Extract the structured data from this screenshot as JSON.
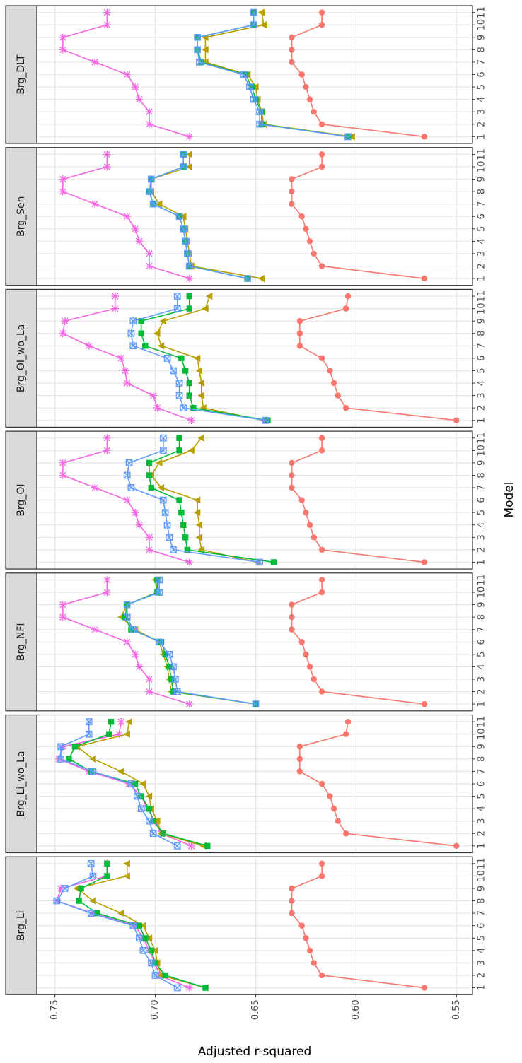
{
  "chart_data": {
    "type": "line",
    "xlabel": "Model",
    "ylabel": "Adjusted r-squared",
    "x": [
      1,
      2,
      3,
      4,
      5,
      6,
      7,
      8,
      9,
      10,
      11
    ],
    "xlim": [
      0.45,
      11.55
    ],
    "xticks": [
      1,
      2,
      3,
      4,
      5,
      6,
      7,
      8,
      9,
      10,
      11
    ],
    "ylim": [
      0.759,
      0.542
    ],
    "yticks": [
      {
        "value": 0.75,
        "label": "0.75"
      },
      {
        "value": 0.7,
        "label": "0.70"
      },
      {
        "value": 0.65,
        "label": "0.65"
      },
      {
        "value": 0.6,
        "label": "0.60"
      },
      {
        "value": 0.55,
        "label": "0.55"
      }
    ],
    "grid": true,
    "facets": [
      {
        "title": "Brg_DLT",
        "series": [
          {
            "color": "#F8766D",
            "marker": "circle",
            "values": [
              0.566,
              0.617,
              0.621,
              0.623,
              0.625,
              0.627,
              0.632,
              0.632,
              0.632,
              0.617,
              0.617
            ]
          },
          {
            "color": "#F564E3",
            "marker": "asterisk",
            "values": [
              0.683,
              0.703,
              0.703,
              0.708,
              0.71,
              0.714,
              0.73,
              0.746,
              0.746,
              0.724,
              0.724
            ]
          },
          {
            "color": "#B79F00",
            "marker": "triangle",
            "values": [
              0.602,
              0.646,
              0.647,
              0.649,
              0.65,
              0.654,
              0.675,
              0.675,
              0.675,
              0.646,
              0.647
            ]
          },
          {
            "color": "#00BA38",
            "marker": "square",
            "values": [
              0.604,
              0.647,
              0.647,
              0.65,
              0.652,
              0.655,
              0.677,
              0.679,
              0.679,
              0.651,
              0.651
            ]
          },
          {
            "color": "#619CFF",
            "marker": "squarecross",
            "values": [
              0.604,
              0.648,
              0.648,
              0.651,
              0.653,
              0.656,
              0.678,
              0.679,
              0.679,
              0.651,
              0.651
            ]
          }
        ]
      },
      {
        "title": "Brg_Sen",
        "series": [
          {
            "color": "#F8766D",
            "marker": "circle",
            "values": [
              0.566,
              0.617,
              0.621,
              0.623,
              0.625,
              0.627,
              0.632,
              0.632,
              0.632,
              0.617,
              0.617
            ]
          },
          {
            "color": "#F564E3",
            "marker": "asterisk",
            "values": [
              0.683,
              0.703,
              0.703,
              0.708,
              0.71,
              0.714,
              0.73,
              0.746,
              0.746,
              0.724,
              0.724
            ]
          },
          {
            "color": "#B79F00",
            "marker": "triangle",
            "values": [
              0.647,
              0.682,
              0.683,
              0.684,
              0.685,
              0.686,
              0.698,
              0.702,
              0.702,
              0.683,
              0.683
            ]
          },
          {
            "color": "#00BA38",
            "marker": "square",
            "values": [
              0.654,
              0.683,
              0.684,
              0.685,
              0.686,
              0.688,
              0.701,
              0.703,
              0.702,
              0.686,
              0.686
            ]
          },
          {
            "color": "#619CFF",
            "marker": "squarecross",
            "values": [
              0.654,
              0.683,
              0.684,
              0.685,
              0.686,
              0.688,
              0.701,
              0.703,
              0.702,
              0.686,
              0.686
            ]
          }
        ]
      },
      {
        "title": "Brg_OI_wo_La",
        "series": [
          {
            "color": "#F8766D",
            "marker": "circle",
            "values": [
              0.55,
              0.605,
              0.609,
              0.611,
              0.613,
              0.617,
              0.628,
              0.628,
              0.628,
              0.605,
              0.604
            ]
          },
          {
            "color": "#F564E3",
            "marker": "asterisk",
            "values": [
              0.682,
              0.699,
              0.701,
              0.714,
              0.715,
              0.717,
              0.733,
              0.746,
              0.745,
              0.72,
              0.72
            ]
          },
          {
            "color": "#B79F00",
            "marker": "triangle",
            "values": [
              0.646,
              0.676,
              0.677,
              0.677,
              0.678,
              0.679,
              0.697,
              0.699,
              0.696,
              0.675,
              0.673
            ]
          },
          {
            "color": "#00BA38",
            "marker": "square",
            "values": [
              0.644,
              0.681,
              0.683,
              0.683,
              0.685,
              0.687,
              0.705,
              0.707,
              0.707,
              0.683,
              0.683
            ]
          },
          {
            "color": "#619CFF",
            "marker": "squarecross",
            "values": [
              0.645,
              0.686,
              0.688,
              0.688,
              0.691,
              0.694,
              0.711,
              0.712,
              0.711,
              0.689,
              0.689
            ]
          }
        ]
      },
      {
        "title": "Brg_OI",
        "series": [
          {
            "color": "#F8766D",
            "marker": "circle",
            "values": [
              0.566,
              0.617,
              0.621,
              0.623,
              0.625,
              0.627,
              0.632,
              0.632,
              0.632,
              0.617,
              0.617
            ]
          },
          {
            "color": "#F564E3",
            "marker": "asterisk",
            "values": [
              0.683,
              0.703,
              0.703,
              0.708,
              0.71,
              0.714,
              0.73,
              0.746,
              0.746,
              0.724,
              0.724
            ]
          },
          {
            "color": "#B79F00",
            "marker": "triangle",
            "values": [
              0.649,
              0.677,
              0.678,
              0.678,
              0.679,
              0.679,
              0.697,
              0.702,
              0.698,
              0.682,
              0.677
            ]
          },
          {
            "color": "#00BA38",
            "marker": "square",
            "values": [
              0.641,
              0.684,
              0.685,
              0.686,
              0.687,
              0.688,
              0.702,
              0.703,
              0.703,
              0.688,
              0.688
            ]
          },
          {
            "color": "#619CFF",
            "marker": "squarecross",
            "values": [
              0.648,
              0.691,
              0.693,
              0.694,
              0.695,
              0.696,
              0.712,
              0.714,
              0.713,
              0.696,
              0.696
            ]
          }
        ]
      },
      {
        "title": "Brg_NFI",
        "series": [
          {
            "color": "#F8766D",
            "marker": "circle",
            "values": [
              0.566,
              0.617,
              0.621,
              0.623,
              0.625,
              0.627,
              0.632,
              0.632,
              0.632,
              0.617,
              0.617
            ]
          },
          {
            "color": "#F564E3",
            "marker": "asterisk",
            "values": [
              0.683,
              0.703,
              0.703,
              0.708,
              0.71,
              0.714,
              0.73,
              0.746,
              0.746,
              0.724,
              0.724
            ]
          },
          {
            "color": "#B79F00",
            "marker": "triangle",
            "values": [
              0.65,
              0.692,
              0.693,
              0.694,
              0.696,
              0.698,
              0.71,
              0.717,
              0.714,
              0.699,
              0.7
            ]
          },
          {
            "color": "#00BA38",
            "marker": "square",
            "values": [
              0.65,
              0.691,
              0.692,
              0.693,
              0.695,
              0.697,
              0.712,
              0.715,
              0.714,
              0.699,
              0.699
            ]
          },
          {
            "color": "#619CFF",
            "marker": "squarecross",
            "values": [
              0.65,
              0.689,
              0.69,
              0.691,
              0.693,
              0.698,
              0.711,
              0.714,
              0.714,
              0.698,
              0.698
            ]
          }
        ]
      },
      {
        "title": "Brg_Li_wo_La",
        "series": [
          {
            "color": "#F8766D",
            "marker": "circle",
            "values": [
              0.55,
              0.605,
              0.609,
              0.611,
              0.613,
              0.617,
              0.628,
              0.628,
              0.628,
              0.605,
              0.604
            ]
          },
          {
            "color": "#F564E3",
            "marker": "asterisk",
            "values": [
              0.682,
              0.697,
              0.7,
              0.704,
              0.707,
              0.713,
              0.733,
              0.748,
              0.746,
              0.718,
              0.717
            ]
          },
          {
            "color": "#B79F00",
            "marker": "triangle",
            "values": [
              0.676,
              0.697,
              0.699,
              0.702,
              0.703,
              0.706,
              0.717,
              0.731,
              0.739,
              0.714,
              0.713
            ]
          },
          {
            "color": "#00BA38",
            "marker": "square",
            "values": [
              0.674,
              0.696,
              0.701,
              0.703,
              0.707,
              0.71,
              0.732,
              0.743,
              0.74,
              0.723,
              0.722
            ]
          },
          {
            "color": "#619CFF",
            "marker": "squarecross",
            "values": [
              0.689,
              0.701,
              0.703,
              0.707,
              0.709,
              0.712,
              0.731,
              0.747,
              0.747,
              0.733,
              0.733
            ]
          }
        ]
      },
      {
        "title": "Brg_Li",
        "series": [
          {
            "color": "#F8766D",
            "marker": "circle",
            "values": [
              0.566,
              0.617,
              0.621,
              0.623,
              0.625,
              0.627,
              0.632,
              0.632,
              0.632,
              0.617,
              0.617
            ]
          },
          {
            "color": "#F564E3",
            "marker": "asterisk",
            "values": [
              0.683,
              0.698,
              0.7,
              0.703,
              0.706,
              0.71,
              0.731,
              0.749,
              0.747,
              0.724,
              0.724
            ]
          },
          {
            "color": "#B79F00",
            "marker": "triangle",
            "values": [
              0.675,
              0.697,
              0.699,
              0.7,
              0.703,
              0.706,
              0.717,
              0.731,
              0.739,
              0.714,
              0.714
            ]
          },
          {
            "color": "#00BA38",
            "marker": "square",
            "values": [
              0.675,
              0.695,
              0.7,
              0.702,
              0.705,
              0.708,
              0.729,
              0.738,
              0.737,
              0.724,
              0.724
            ]
          },
          {
            "color": "#619CFF",
            "marker": "squarecross",
            "values": [
              0.689,
              0.7,
              0.702,
              0.706,
              0.708,
              0.711,
              0.732,
              0.749,
              0.745,
              0.731,
              0.732
            ]
          }
        ]
      }
    ]
  }
}
